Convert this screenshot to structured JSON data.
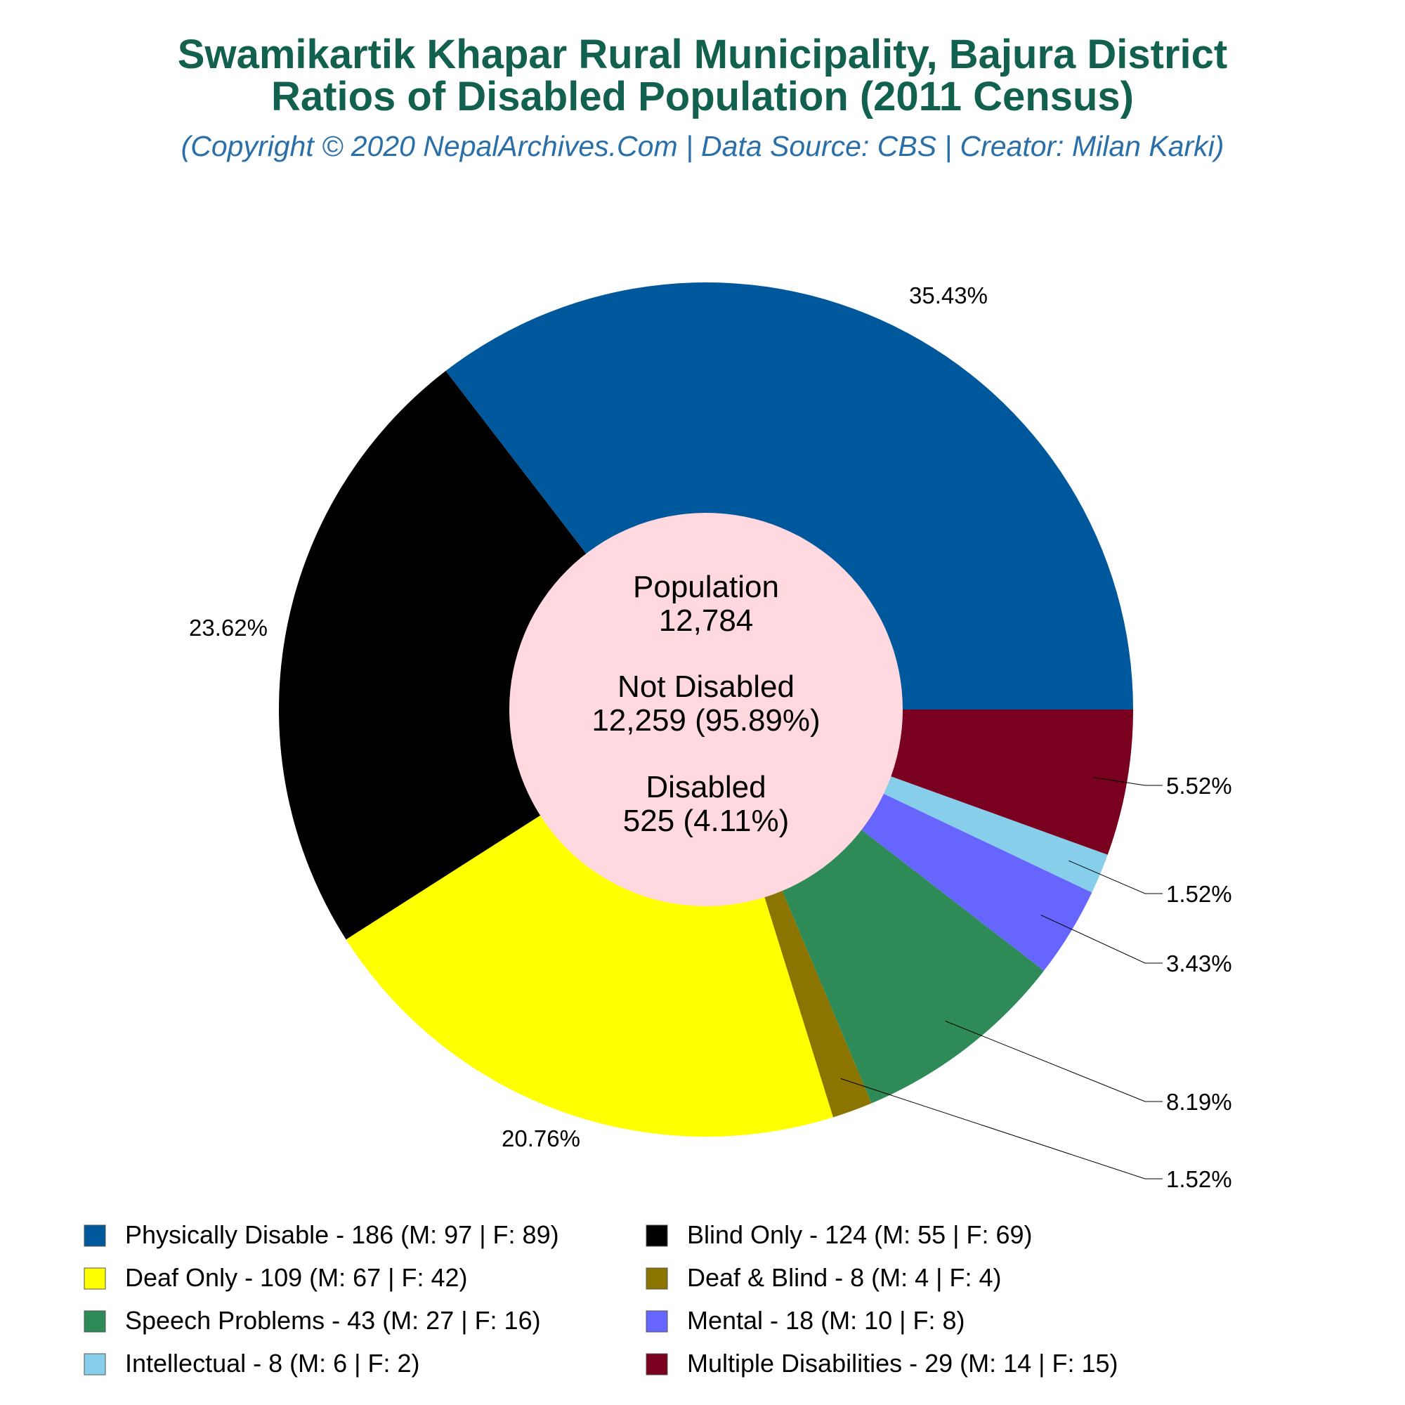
{
  "title_line1": "Swamikartik Khapar Rural Municipality, Bajura District",
  "title_line2": "Ratios of Disabled Population (2011 Census)",
  "subtitle": "(Copyright © 2020 NepalArchives.Com | Data Source: CBS | Creator: Milan Karki)",
  "center": {
    "population_label": "Population",
    "population_value": "12,784",
    "not_disabled_label": "Not Disabled",
    "not_disabled_value": "12,259 (95.89%)",
    "disabled_label": "Disabled",
    "disabled_value": "525 (4.11%)"
  },
  "chart_data": {
    "type": "pie",
    "start_angle_deg": 0,
    "direction": "clockwise",
    "slices": [
      {
        "legend": "Multiple Disabilities - 29 (M: 14 | F: 15)",
        "value": 29,
        "pct_label": "5.52%",
        "color": "#7a0020"
      },
      {
        "legend": "Intellectual - 8 (M: 6 | F: 2)",
        "value": 8,
        "pct_label": "1.52%",
        "color": "#87ceeb"
      },
      {
        "legend": "Mental - 18 (M: 10 | F: 8)",
        "value": 18,
        "pct_label": "3.43%",
        "color": "#6666ff"
      },
      {
        "legend": "Speech Problems - 43 (M: 27 | F: 16)",
        "value": 43,
        "pct_label": "8.19%",
        "color": "#2e8b57"
      },
      {
        "legend": "Deaf & Blind - 8 (M: 4 | F: 4)",
        "value": 8,
        "pct_label": "1.52%",
        "color": "#8b7500"
      },
      {
        "legend": "Deaf Only - 109 (M: 67 | F: 42)",
        "value": 109,
        "pct_label": "20.76%",
        "color": "#ffff00"
      },
      {
        "legend": "Blind Only - 124 (M: 55 | F: 69)",
        "value": 124,
        "pct_label": "23.62%",
        "color": "#000000"
      },
      {
        "legend": "Physically Disable - 186 (M: 97 | F: 89)",
        "value": 186,
        "pct_label": "35.43%",
        "color": "#00589c"
      }
    ],
    "legend_order": [
      7,
      6,
      5,
      4,
      3,
      2,
      1,
      0
    ],
    "center_color": "#ffd8e0"
  }
}
